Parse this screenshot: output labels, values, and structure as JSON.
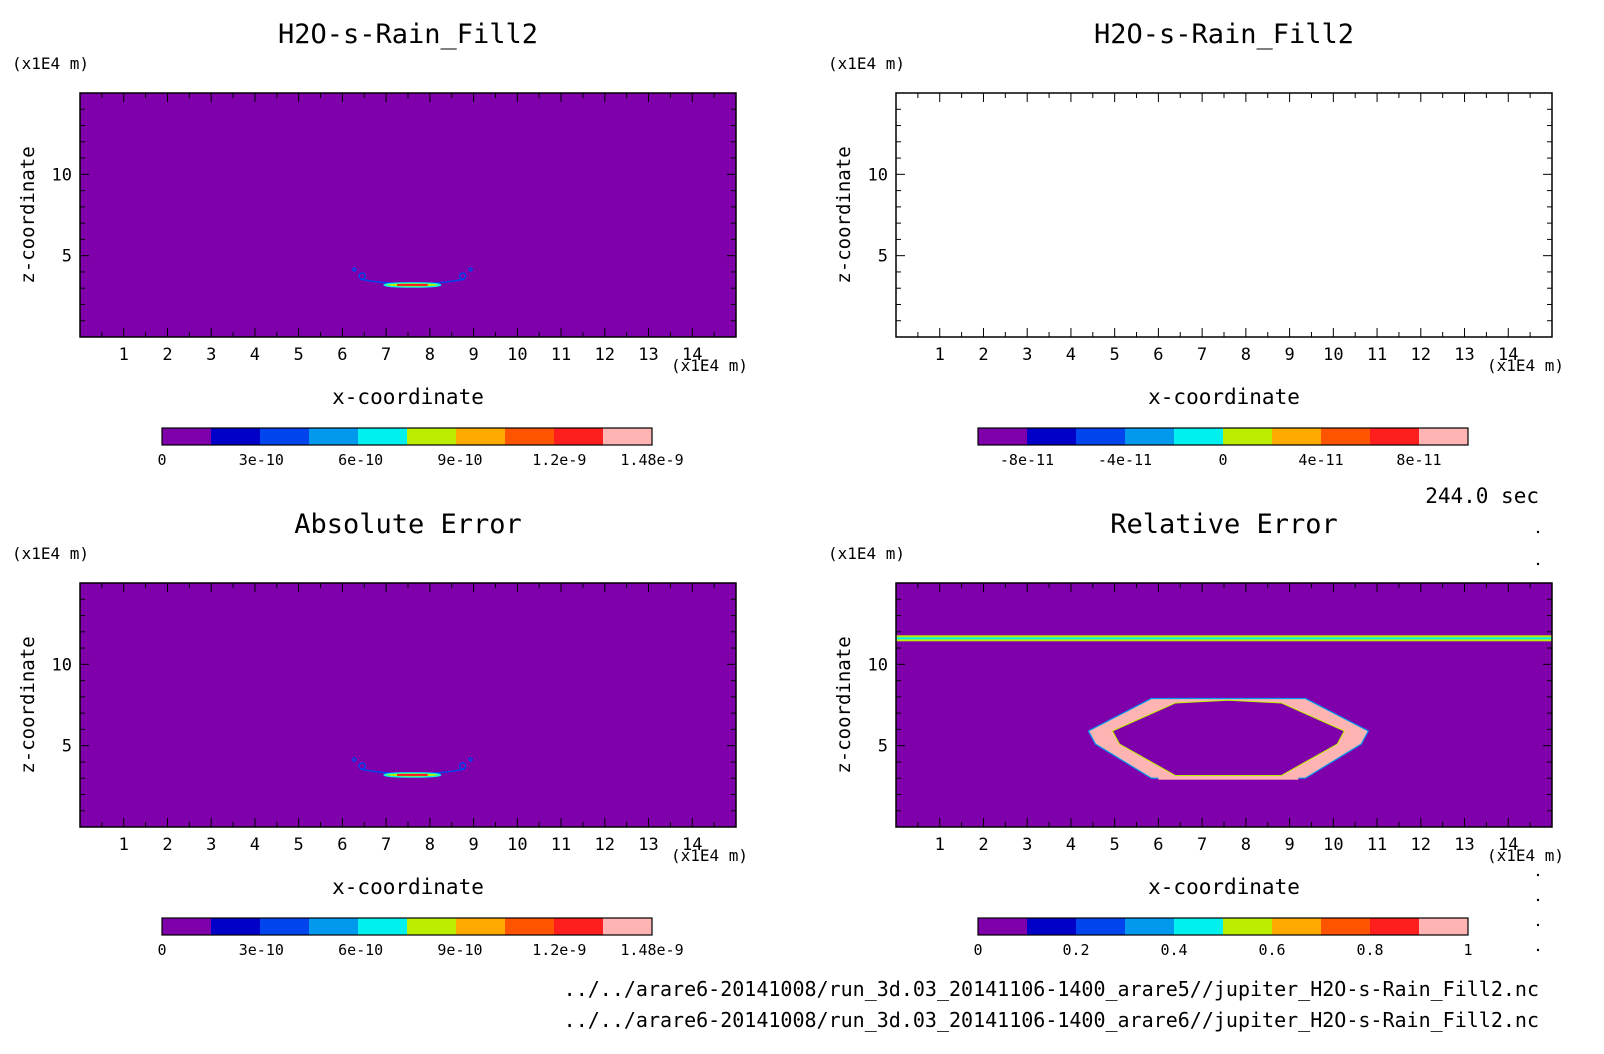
{
  "time_label": "244.0 sec",
  "files": [
    "../../arare6-20141008/run_3d.03_20141106-1400_arare5//jupiter_H2O-s-Rain_Fill2.nc",
    "../../arare6-20141008/run_3d.03_20141106-1400_arare6//jupiter_H2O-s-Rain_Fill2.nc"
  ],
  "colormap": [
    "#7f00aa",
    "#0000c8",
    "#0044ee",
    "#0099ee",
    "#00f0f0",
    "#bbee00",
    "#ffaa00",
    "#ff5500",
    "#ff1e1e",
    "#ffb4b4"
  ],
  "chart_data": [
    {
      "type": "heatmap",
      "title": "H2O-s-Rain_Fill2",
      "xlabel": "x-coordinate",
      "ylabel": "z-coordinate",
      "x_unit": "(x1E4 m)",
      "y_unit": "(x1E4 m)",
      "xlim": [
        0,
        15
      ],
      "ylim": [
        0,
        15
      ],
      "x_ticks": [
        1,
        2,
        3,
        4,
        5,
        6,
        7,
        8,
        9,
        10,
        11,
        12,
        13,
        14
      ],
      "y_ticks": [
        5,
        10
      ],
      "field": "rain_lens",
      "features": {
        "center_x": 7.6,
        "base_z": 3.2,
        "half_width": 1.25
      },
      "colorbar": {
        "ticks": [
          "0",
          "3e-10",
          "6e-10",
          "9e-10",
          "1.2e-9",
          "1.48e-9"
        ],
        "values": [
          0,
          3e-10,
          6e-10,
          9e-10,
          1.2e-09,
          1.48e-09
        ],
        "vmin": 0,
        "vmax": 1.48e-09
      }
    },
    {
      "type": "heatmap",
      "title": "H2O-s-Rain_Fill2",
      "xlabel": "x-coordinate",
      "ylabel": "z-coordinate",
      "x_unit": "(x1E4 m)",
      "y_unit": "(x1E4 m)",
      "xlim": [
        0,
        15
      ],
      "ylim": [
        0,
        15
      ],
      "x_ticks": [
        1,
        2,
        3,
        4,
        5,
        6,
        7,
        8,
        9,
        10,
        11,
        12,
        13,
        14
      ],
      "y_ticks": [
        5,
        10
      ],
      "field": "empty",
      "colorbar": {
        "ticks": [
          "-8e-11",
          "-4e-11",
          "0",
          "4e-11",
          "8e-11"
        ],
        "values": [
          -8e-11,
          -4e-11,
          0,
          4e-11,
          8e-11
        ],
        "vmin": -1e-10,
        "vmax": 1e-10
      }
    },
    {
      "type": "heatmap",
      "title": "Absolute Error",
      "xlabel": "x-coordinate",
      "ylabel": "z-coordinate",
      "x_unit": "(x1E4 m)",
      "y_unit": "(x1E4 m)",
      "xlim": [
        0,
        15
      ],
      "ylim": [
        0,
        15
      ],
      "x_ticks": [
        1,
        2,
        3,
        4,
        5,
        6,
        7,
        8,
        9,
        10,
        11,
        12,
        13,
        14
      ],
      "y_ticks": [
        5,
        10
      ],
      "field": "rain_lens",
      "features": {
        "center_x": 7.6,
        "base_z": 3.2,
        "half_width": 1.25
      },
      "colorbar": {
        "ticks": [
          "0",
          "3e-10",
          "6e-10",
          "9e-10",
          "1.2e-9",
          "1.48e-9"
        ],
        "values": [
          0,
          3e-10,
          6e-10,
          9e-10,
          1.2e-09,
          1.48e-09
        ],
        "vmin": 0,
        "vmax": 1.48e-09
      }
    },
    {
      "type": "heatmap",
      "title": "Relative Error",
      "xlabel": "x-coordinate",
      "ylabel": "z-coordinate",
      "x_unit": "(x1E4 m)",
      "y_unit": "(x1E4 m)",
      "xlim": [
        0,
        15
      ],
      "ylim": [
        0,
        15
      ],
      "x_ticks": [
        1,
        2,
        3,
        4,
        5,
        6,
        7,
        8,
        9,
        10,
        11,
        12,
        13,
        14
      ],
      "y_ticks": [
        5,
        10
      ],
      "field": "error_ring",
      "features": {
        "band_z": 11.6,
        "ring_center_x": 7.6,
        "ring_center_z": 5.5,
        "ring_half_width": 3.2,
        "ring_top_z": 7.9,
        "ring_bottom_z": 3.0
      },
      "colorbar": {
        "ticks": [
          "0",
          "0.2",
          "0.4",
          "0.6",
          "0.8",
          "1"
        ],
        "values": [
          0,
          0.2,
          0.4,
          0.6,
          0.8,
          1
        ],
        "vmin": 0,
        "vmax": 1
      }
    }
  ]
}
